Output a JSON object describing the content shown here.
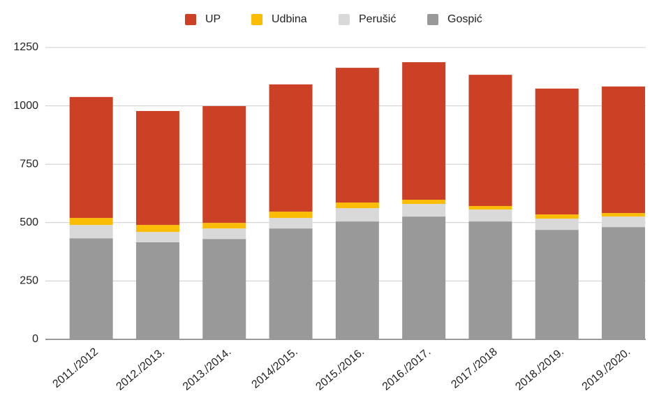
{
  "chart_data": {
    "type": "stacked_bar",
    "categories": [
      "2011./2012",
      "2012./2013.",
      "2013./2014.",
      "2014/2015.",
      "2015./2016.",
      "2016./2017.",
      "2017./2018",
      "2018./2019.",
      "2019./2020."
    ],
    "series": [
      {
        "name": "Gospić",
        "color": "#999999",
        "values": [
          433,
          416,
          430,
          475,
          505,
          526,
          505,
          469,
          481
        ]
      },
      {
        "name": "Perušić",
        "color": "#d9d9d9",
        "values": [
          57,
          44,
          45,
          45,
          57,
          54,
          51,
          48,
          45
        ]
      },
      {
        "name": "Udbina",
        "color": "#fbbc04",
        "values": [
          30,
          30,
          24,
          27,
          24,
          18,
          15,
          18,
          15
        ]
      },
      {
        "name": "UP",
        "color": "#cc4125",
        "values": [
          518,
          488,
          500,
          545,
          577,
          589,
          562,
          539,
          542
        ]
      }
    ],
    "ylim": [
      0,
      1250
    ],
    "yticks": [
      0,
      250,
      500,
      750,
      1000,
      1250
    ],
    "grid": true,
    "legend": "top"
  }
}
